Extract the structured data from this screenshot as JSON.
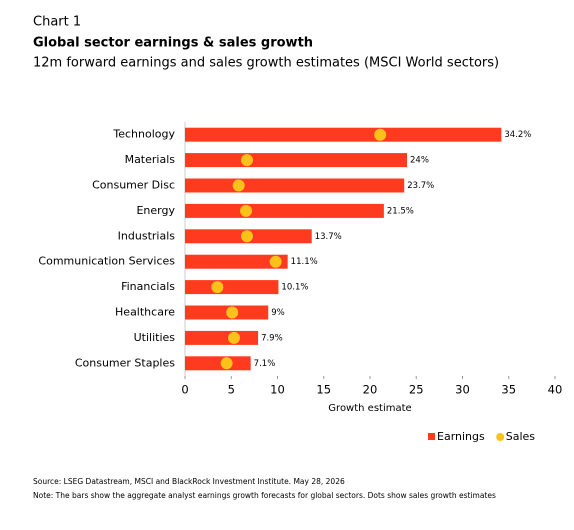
{
  "chart_data": {
    "type": "bar",
    "label": "Chart 1",
    "title": "Global sector earnings & sales growth",
    "subtitle": "12m forward earnings and sales growth estimates (MSCI World sectors)",
    "categories": [
      "Technology",
      "Materials",
      "Consumer Disc",
      "Energy",
      "Industrials",
      "Communication Services",
      "Financials",
      "Healthcare",
      "Utilities",
      "Consumer Staples"
    ],
    "series": [
      {
        "name": "Earnings",
        "type": "bar",
        "color": "#ff3b1f",
        "values": [
          34.2,
          24,
          23.7,
          21.5,
          13.7,
          11.1,
          10.1,
          9,
          7.9,
          7.1
        ],
        "value_labels": [
          "34.2%",
          "24%",
          "23.7%",
          "21.5%",
          "13.7%",
          "11.1%",
          "10.1%",
          "9%",
          "7.9%",
          "7.1%"
        ]
      },
      {
        "name": "Sales",
        "type": "dot",
        "color": "#fcc11a",
        "values": [
          21.1,
          6.7,
          5.8,
          6.6,
          6.7,
          9.8,
          3.5,
          5.1,
          5.3,
          4.5
        ]
      }
    ],
    "xlabel": "Growth estimate",
    "xlim": [
      0,
      40
    ],
    "xticks": [
      0,
      5,
      10,
      15,
      20,
      25,
      30,
      35,
      40
    ],
    "source": "Source: LSEG Datastream, MSCI and BlackRock Investment Institute. May 28, 2026",
    "note": "Note: The bars show the aggregate analyst earnings growth forecasts for global sectors. Dots show sales growth estimates"
  }
}
